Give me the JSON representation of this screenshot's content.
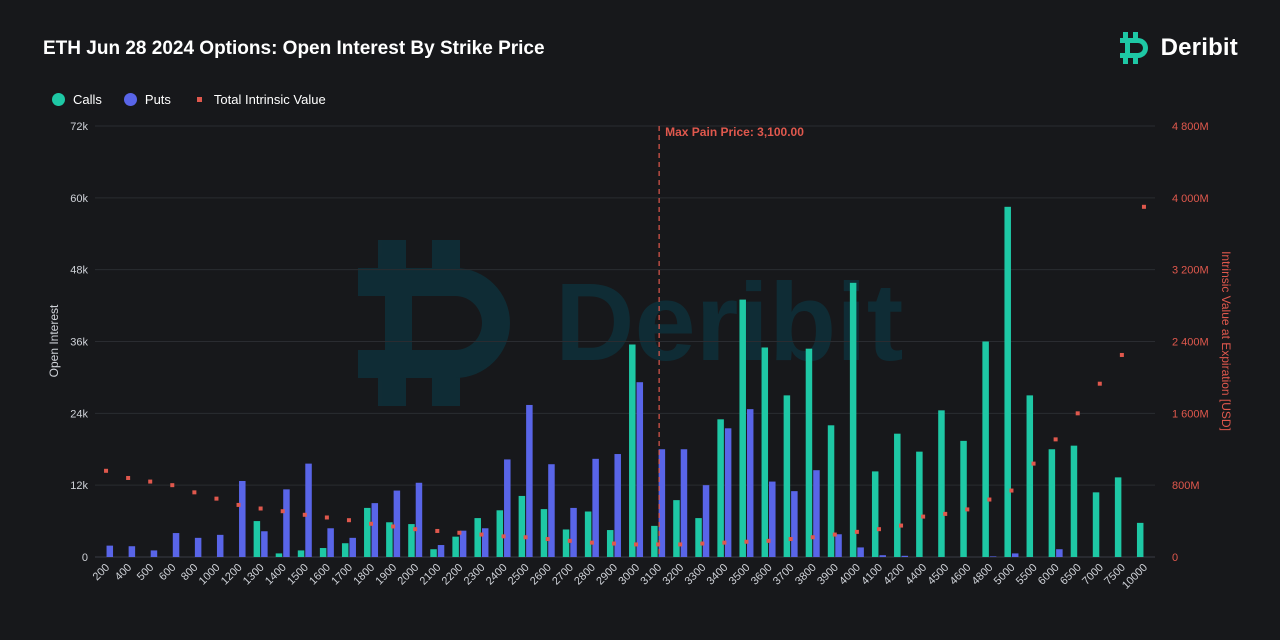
{
  "header": {
    "title": "ETH Jun 28 2024 Options: Open Interest By Strike Price"
  },
  "logo": {
    "text": "Deribit",
    "watermark_text": "Deribit"
  },
  "legend": [
    {
      "label": "Calls",
      "color": "#1ec8a5"
    },
    {
      "label": "Puts",
      "color": "#5965e8"
    },
    {
      "label": "Total Intrinsic Value",
      "color": "#e0584d"
    }
  ],
  "chart_data": {
    "type": "bar",
    "title": "ETH Jun 28 2024 Options: Open Interest By Strike Price",
    "xlabel": "",
    "ylabel": "Open Interest",
    "y2label": "Intrinsic Value at Expiration [USD]",
    "ylim": [
      0,
      72000
    ],
    "y2lim": [
      0,
      4800
    ],
    "yticks": [
      "0",
      "12k",
      "24k",
      "36k",
      "48k",
      "60k",
      "72k"
    ],
    "y2ticks": [
      "0",
      "800M",
      "1 600M",
      "2 400M",
      "3 200M",
      "4 000M",
      "4 800M"
    ],
    "grid": "horizontal",
    "legend_position": "top-left",
    "categories": [
      "200",
      "400",
      "500",
      "600",
      "800",
      "1000",
      "1200",
      "1300",
      "1400",
      "1500",
      "1600",
      "1700",
      "1800",
      "1900",
      "2000",
      "2100",
      "2200",
      "2300",
      "2400",
      "2500",
      "2600",
      "2700",
      "2800",
      "2900",
      "3000",
      "3100",
      "3200",
      "3300",
      "3400",
      "3500",
      "3600",
      "3700",
      "3800",
      "3900",
      "4000",
      "4100",
      "4200",
      "4400",
      "4500",
      "4600",
      "4800",
      "5000",
      "5500",
      "6000",
      "6500",
      "7000",
      "7500",
      "10000"
    ],
    "series": [
      {
        "name": "Calls",
        "type": "bar",
        "color": "#1ec8a5",
        "values": [
          0,
          0,
          0,
          0,
          0,
          0,
          0,
          6000,
          600,
          1100,
          1500,
          2300,
          8200,
          5800,
          5500,
          1300,
          3400,
          6500,
          7800,
          10200,
          8000,
          4600,
          7600,
          4500,
          35500,
          5200,
          9500,
          6500,
          23000,
          43000,
          35000,
          27000,
          34800,
          22000,
          45800,
          14300,
          20600,
          17600,
          24500,
          19400,
          36000,
          58500,
          27000,
          18000,
          18600,
          10800,
          13300,
          5700
        ]
      },
      {
        "name": "Puts",
        "type": "bar",
        "color": "#5965e8",
        "values": [
          1900,
          1800,
          1100,
          4000,
          3200,
          3700,
          12700,
          4300,
          11300,
          15600,
          4800,
          3200,
          9000,
          11100,
          12400,
          2000,
          4400,
          4800,
          16300,
          25400,
          15500,
          8200,
          16400,
          17200,
          29200,
          18000,
          18000,
          12000,
          21500,
          24700,
          12600,
          11000,
          14500,
          3800,
          1600,
          300,
          200,
          0,
          0,
          0,
          100,
          600,
          0,
          1300,
          0,
          0,
          0,
          0
        ]
      },
      {
        "name": "Total Intrinsic Value",
        "type": "scatter",
        "axis": "right",
        "color": "#e0584d",
        "values": [
          960,
          880,
          840,
          800,
          720,
          650,
          580,
          540,
          510,
          470,
          440,
          410,
          370,
          340,
          310,
          290,
          270,
          250,
          230,
          220,
          200,
          180,
          160,
          150,
          140,
          140,
          140,
          150,
          160,
          170,
          180,
          200,
          220,
          250,
          280,
          310,
          350,
          450,
          480,
          530,
          640,
          740,
          1040,
          1310,
          1600,
          1930,
          2250,
          3900
        ]
      }
    ],
    "annotations": [
      {
        "text": "Max Pain Price: 3,100.00",
        "x_category": "3100"
      }
    ]
  }
}
